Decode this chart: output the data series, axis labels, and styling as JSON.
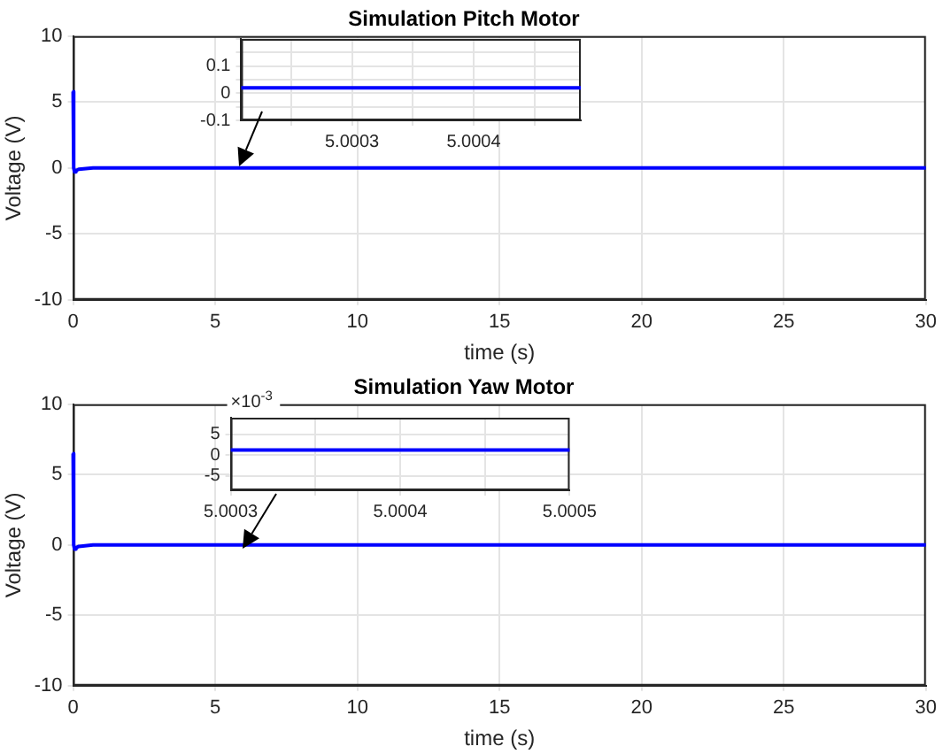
{
  "chart_data": [
    {
      "type": "line",
      "title": "Simulation Pitch Motor",
      "xlabel": "time (s)",
      "ylabel": "Voltage (V)",
      "x": [
        0,
        0.02,
        0.05,
        0.1,
        0.2,
        0.7,
        30
      ],
      "series": [
        {
          "color": "#0000ff",
          "values": [
            5.8,
            0,
            -0.3,
            -0.2,
            -0.1,
            0,
            0
          ]
        }
      ],
      "xlim": [
        0,
        30
      ],
      "ylim": [
        -10,
        10
      ],
      "xticks": [
        0,
        5,
        10,
        15,
        20,
        25,
        30
      ],
      "yticks": [
        -10,
        -5,
        0,
        5,
        10
      ],
      "grid": true,
      "marker": "none",
      "line_style": "solid"
    },
    {
      "type": "line",
      "x": [
        5.000209,
        5.000488
      ],
      "series": [
        {
          "color": "#0000ff",
          "values": [
            0.02,
            0.02
          ]
        }
      ],
      "xlim": [
        5.000209,
        5.000488
      ],
      "ylim": [
        -0.1,
        0.2
      ],
      "xticks": [
        {
          "value": 5.00025,
          "label": null
        },
        5.0003,
        {
          "value": 5.00035,
          "label": null
        },
        5.0004,
        {
          "value": 5.00045,
          "label": null
        }
      ],
      "yticks": [
        -0.1,
        {
          "value": -0.05,
          "label": null
        },
        0,
        {
          "value": 0.05,
          "label": null
        },
        0.1,
        {
          "value": 0.15,
          "label": null
        },
        {
          "value": 0.2,
          "label": null
        }
      ],
      "grid": true,
      "marker": "none",
      "line_style": "solid"
    },
    {
      "type": "line",
      "title": "Simulation Yaw Motor",
      "xlabel": "time (s)",
      "ylabel": "Voltage (V)",
      "x": [
        0,
        0.02,
        0.05,
        0.1,
        0.2,
        0.7,
        30
      ],
      "series": [
        {
          "color": "#0000ff",
          "values": [
            6.5,
            0,
            -0.3,
            -0.2,
            -0.1,
            0,
            0
          ]
        }
      ],
      "xlim": [
        0,
        30
      ],
      "ylim": [
        -10,
        10
      ],
      "xticks": [
        0,
        5,
        10,
        15,
        20,
        25,
        30
      ],
      "yticks": [
        -10,
        -5,
        0,
        5,
        10
      ],
      "grid": true,
      "marker": "none",
      "line_style": "solid"
    },
    {
      "type": "line",
      "annotations": [
        "×10$^{-3}$"
      ],
      "x": [
        5.0003,
        5.0005
      ],
      "series": [
        {
          "color": "#0000ff",
          "values": [
            1.2,
            1.2
          ]
        }
      ],
      "xlim": [
        5.0003,
        5.0005
      ],
      "ylim": [
        -8.5,
        9
      ],
      "xticks": [
        5.0003,
        {
          "value": 5.00035,
          "label": null
        },
        5.0004,
        {
          "value": 5.00045,
          "label": null
        },
        5.0005
      ],
      "yticks": [
        -5,
        0,
        5
      ],
      "grid": true,
      "marker": "none",
      "line_style": "solid"
    }
  ]
}
